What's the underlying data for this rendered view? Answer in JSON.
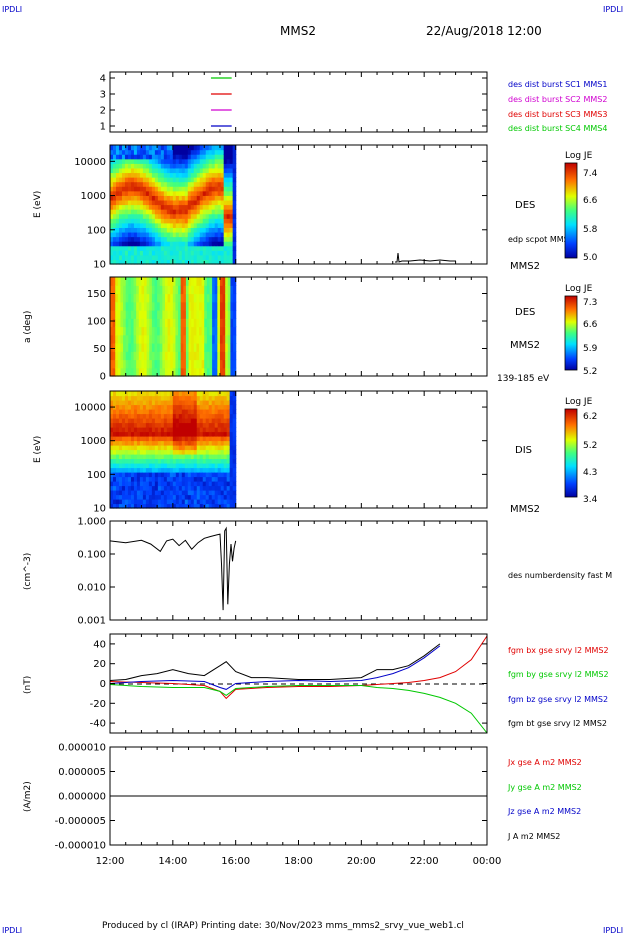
{
  "header": {
    "corner_tl": "IPDLI",
    "corner_tr": "IPDLI",
    "corner_bl": "IPDLI",
    "corner_br": "IPDLI",
    "spacecraft": "MMS2",
    "datetime": "22/Aug/2018 12:00"
  },
  "footer": {
    "text": "Produced by cl (IRAP)   Printing date: 30/Nov/2023   mms_mms2_srvy_vue_web1.cl"
  },
  "time_axis": {
    "ticks": [
      "12:00",
      "14:00",
      "16:00",
      "18:00",
      "20:00",
      "22:00",
      "00:00"
    ],
    "hours": [
      12,
      14,
      16,
      18,
      20,
      22,
      24
    ]
  },
  "colors": {
    "red": "#e00000",
    "green": "#00c800",
    "blue": "#0000c8",
    "magenta": "#d000d0",
    "black": "#000000"
  },
  "chart_data": [
    {
      "type": "line",
      "panel": "spacecraft-coverage",
      "yticks": [
        "1",
        "2",
        "3",
        "4"
      ],
      "series": [
        {
          "name": "des dist burst SC1 MMS1",
          "color": "#0000c8",
          "level": 1
        },
        {
          "name": "des dist burst SC2 MMS2",
          "color": "#d000d0",
          "level": 2
        },
        {
          "name": "des dist burst SC3 MMS3",
          "color": "#e00000",
          "level": 3
        },
        {
          "name": "des dist burst SC4 MMS4",
          "color": "#00c800",
          "level": 4
        }
      ],
      "x_range_hours": [
        15.5,
        16.0
      ]
    },
    {
      "type": "heatmap",
      "panel": "des-energy",
      "ylabel": "E (eV)",
      "yticks": [
        "10",
        "100",
        "1000",
        "10000"
      ],
      "ylim": [
        10,
        30000
      ],
      "yscale": "log",
      "instrument_label": "DES",
      "overlay_label": "edp scpot MMS2",
      "sc_label": "MMS2",
      "colorbar": {
        "title": "Log JE",
        "ticks": [
          "7.4",
          "6.6",
          "5.8",
          "5.0"
        ],
        "range": [
          5.0,
          7.4
        ]
      },
      "data_x_range_hours": [
        12.0,
        16.0
      ]
    },
    {
      "type": "heatmap",
      "panel": "des-pitch-angle",
      "ylabel": "a (deg)",
      "yticks": [
        "0",
        "50",
        "100",
        "150"
      ],
      "ylim": [
        0,
        180
      ],
      "instrument_label": "DES",
      "sc_label": "MMS2",
      "energy_band": "139-185 eV",
      "colorbar": {
        "title": "Log JE",
        "ticks": [
          "7.3",
          "6.6",
          "5.9",
          "5.2"
        ],
        "range": [
          5.2,
          7.3
        ]
      },
      "data_x_range_hours": [
        12.0,
        16.0
      ]
    },
    {
      "type": "heatmap",
      "panel": "dis-energy",
      "ylabel": "E (eV)",
      "yticks": [
        "10",
        "100",
        "1000",
        "10000"
      ],
      "ylim": [
        10,
        30000
      ],
      "yscale": "log",
      "instrument_label": "DIS",
      "sc_label": "MMS2",
      "colorbar": {
        "title": "Log JE",
        "ticks": [
          "6.2",
          "5.2",
          "4.3",
          "3.4"
        ],
        "range": [
          3.4,
          6.2
        ]
      },
      "data_x_range_hours": [
        12.0,
        16.0
      ]
    },
    {
      "type": "line",
      "panel": "density",
      "ylabel": "(cm^-3)",
      "yticks": [
        "0.001",
        "0.010",
        "0.100",
        "1.000"
      ],
      "ylim": [
        0.001,
        1.0
      ],
      "yscale": "log",
      "series": [
        {
          "name": "des numberdensity fast M",
          "color": "#000000",
          "x": [
            12.0,
            12.5,
            13.0,
            13.3,
            13.6,
            13.8,
            14.0,
            14.2,
            14.4,
            14.6,
            14.8,
            15.0,
            15.2,
            15.4,
            15.5,
            15.55,
            15.6,
            15.65,
            15.7,
            15.75,
            15.8,
            15.85,
            15.9,
            15.95,
            16.0
          ],
          "y": [
            0.25,
            0.22,
            0.26,
            0.2,
            0.12,
            0.25,
            0.28,
            0.18,
            0.26,
            0.14,
            0.22,
            0.3,
            0.34,
            0.38,
            0.4,
            0.05,
            0.002,
            0.5,
            0.6,
            0.003,
            0.05,
            0.2,
            0.06,
            0.15,
            0.25
          ]
        }
      ]
    },
    {
      "type": "line",
      "panel": "magnetic-field",
      "ylabel": "(nT)",
      "yticks": [
        "-40",
        "-20",
        "0",
        "20",
        "40"
      ],
      "ylim": [
        -50,
        50
      ],
      "series": [
        {
          "name": "fgm bx gse srvy l2 MMS2",
          "color": "#e00000",
          "x": [
            12,
            13,
            14,
            15,
            15.5,
            15.7,
            16,
            17,
            18,
            19,
            20,
            20.5,
            21,
            21.5,
            22,
            22.5,
            23,
            23.5,
            24
          ],
          "y": [
            2,
            1,
            0,
            -2,
            -8,
            -15,
            -6,
            -4,
            -3,
            -3,
            -2,
            -1,
            0,
            1,
            3,
            6,
            12,
            24,
            48
          ]
        },
        {
          "name": "fgm by gse srvy l2 MMS2",
          "color": "#00c800",
          "x": [
            12,
            13,
            14,
            15,
            15.5,
            15.7,
            16,
            17,
            18,
            19,
            20,
            20.5,
            21,
            21.5,
            22,
            22.5,
            23,
            23.5,
            24
          ],
          "y": [
            -1,
            -3,
            -4,
            -4,
            -8,
            -12,
            -5,
            -3,
            -2,
            -2,
            -2,
            -4,
            -5,
            -7,
            -10,
            -14,
            -20,
            -30,
            -50
          ]
        },
        {
          "name": "fgm bz gse srvy l2 MMS2",
          "color": "#0000c8",
          "x": [
            12,
            13,
            14,
            15,
            15.5,
            15.7,
            16,
            17,
            18,
            19,
            20,
            20.5,
            21,
            21.5,
            22,
            22.5,
            23,
            23.5,
            24
          ],
          "y": [
            0,
            2,
            3,
            2,
            -4,
            -6,
            0,
            2,
            3,
            2,
            3,
            6,
            10,
            16,
            26,
            38,
            null,
            null,
            null
          ]
        },
        {
          "name": "fgm bt gse srvy l2 MMS2",
          "color": "#000000",
          "x": [
            12,
            12.5,
            13,
            13.5,
            14,
            14.5,
            15,
            15.5,
            15.7,
            16,
            16.5,
            17,
            18,
            19,
            20,
            20.5,
            21,
            21.5,
            22,
            22.5,
            23
          ],
          "y": [
            3,
            4,
            8,
            10,
            14,
            10,
            8,
            18,
            22,
            12,
            6,
            6,
            4,
            4,
            6,
            14,
            14,
            18,
            28,
            40,
            null
          ]
        }
      ]
    },
    {
      "type": "line",
      "panel": "current-density",
      "ylabel": "(A/m2)",
      "yticks": [
        "-0.000010",
        "-0.000005",
        "0.000000",
        "0.000005",
        "0.000010"
      ],
      "ylim": [
        -1e-05,
        1e-05
      ],
      "series": [
        {
          "name": "Jx gse A m2 MMS2",
          "color": "#e00000"
        },
        {
          "name": "Jy gse A m2 MMS2",
          "color": "#00c800"
        },
        {
          "name": "Jz gse A m2 MMS2",
          "color": "#0000c8"
        },
        {
          "name": "J A m2 MMS2",
          "color": "#000000",
          "x": [
            12,
            24
          ],
          "y": [
            0,
            0
          ]
        }
      ]
    }
  ]
}
